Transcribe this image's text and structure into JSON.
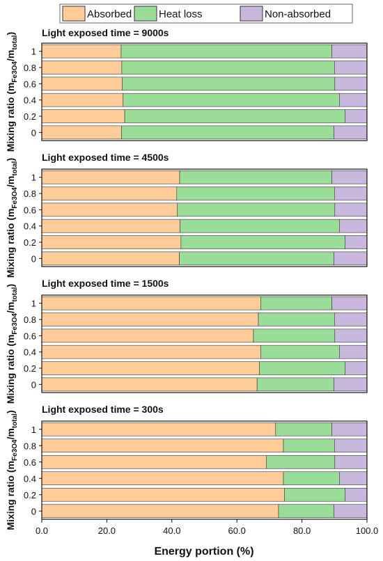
{
  "chart_data": {
    "type": "bar",
    "orientation": "horizontal",
    "stacked": true,
    "legend": {
      "position": "top",
      "entries": [
        {
          "name": "Absorbed",
          "color": "#ffcc99"
        },
        {
          "name": "Heat loss",
          "color": "#99dd99"
        },
        {
          "name": "Non-absorbed",
          "color": "#c9b8de"
        }
      ]
    },
    "colors": {
      "Absorbed": "#ffcc99",
      "Heat loss": "#99dd99",
      "Non-absorbed": "#c9b8de",
      "outline": "#333333"
    },
    "ylabel": "Mixing ratio (m_Fe3O4/m_total)",
    "xlabel": "Energy portion (%)",
    "xlim": [
      0,
      100
    ],
    "xticks": [
      "0.0",
      "20.0",
      "40.0",
      "60.0",
      "80.0",
      "100.0"
    ],
    "categories": [
      "1",
      "0.8",
      "0.6",
      "0.4",
      "0.2",
      "0"
    ],
    "panels": [
      {
        "title": "Light exposed time = 9000s",
        "series": [
          {
            "name": "Absorbed",
            "values": [
              24.4,
              24.6,
              24.7,
              25.0,
              25.5,
              24.5
            ]
          },
          {
            "name": "Heat loss",
            "values": [
              64.8,
              65.4,
              65.4,
              66.5,
              67.8,
              65.3
            ]
          },
          {
            "name": "Non-absorbed",
            "values": [
              10.8,
              10.0,
              9.9,
              8.5,
              6.7,
              10.2
            ]
          }
        ]
      },
      {
        "title": "Light exposed time = 4500s",
        "series": [
          {
            "name": "Absorbed",
            "values": [
              42.4,
              41.5,
              41.7,
              42.5,
              42.8,
              42.3
            ]
          },
          {
            "name": "Heat loss",
            "values": [
              46.8,
              48.5,
              48.4,
              49.0,
              50.5,
              47.5
            ]
          },
          {
            "name": "Non-absorbed",
            "values": [
              10.8,
              10.0,
              9.9,
              8.5,
              6.7,
              10.2
            ]
          }
        ]
      },
      {
        "title": "Light exposed time = 1500s",
        "series": [
          {
            "name": "Absorbed",
            "values": [
              67.3,
              66.6,
              65.1,
              67.3,
              66.9,
              66.2
            ]
          },
          {
            "name": "Heat loss",
            "values": [
              21.9,
              23.4,
              25.0,
              24.2,
              26.4,
              23.6
            ]
          },
          {
            "name": "Non-absorbed",
            "values": [
              10.8,
              10.0,
              9.9,
              8.5,
              6.7,
              10.2
            ]
          }
        ]
      },
      {
        "title": "Light exposed time = 300s",
        "series": [
          {
            "name": "Absorbed",
            "values": [
              71.9,
              74.3,
              69.1,
              74.3,
              74.6,
              72.8
            ]
          },
          {
            "name": "Heat loss",
            "values": [
              17.3,
              15.7,
              21.0,
              17.2,
              18.7,
              17.0
            ]
          },
          {
            "name": "Non-absorbed",
            "values": [
              10.8,
              10.0,
              9.9,
              8.5,
              6.7,
              10.2
            ]
          }
        ]
      }
    ]
  }
}
